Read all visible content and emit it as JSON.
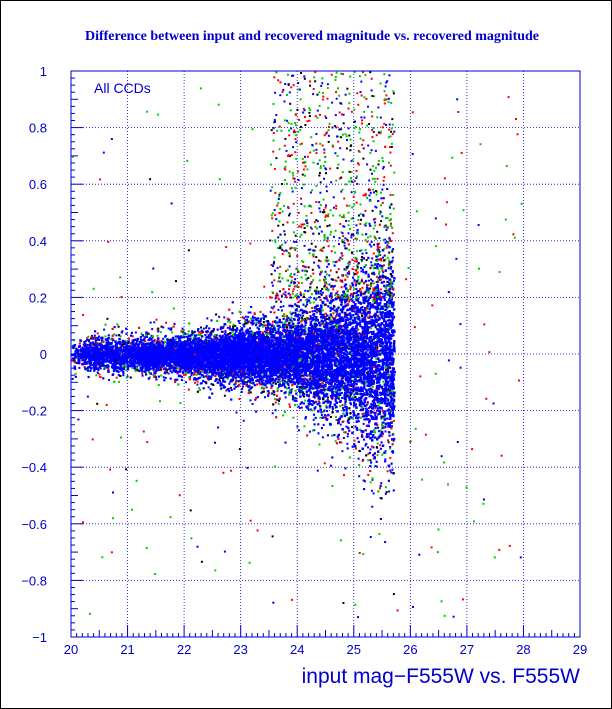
{
  "chart_data": {
    "type": "scatter",
    "title": "Difference between input and recovered magnitude vs. recovered magnitude",
    "xlabel": "input mag−F555W vs. F555W",
    "ylabel": "",
    "annotation": "All CCDs",
    "xlim": [
      20,
      29
    ],
    "ylim": [
      -1,
      1
    ],
    "x_ticks": [
      "20",
      "21",
      "22",
      "23",
      "24",
      "25",
      "26",
      "27",
      "28",
      "29"
    ],
    "y_ticks": [
      "1",
      "0.8",
      "0.6",
      "0.4",
      "0.2",
      "0",
      "−0.2",
      "−0.4",
      "−0.6",
      "−0.8",
      "−1"
    ],
    "grid": true,
    "series_colors": [
      "#000000",
      "#ff0000",
      "#00cc00",
      "#0000ff"
    ],
    "title_color": "#0000cc",
    "axis_color": "#0000cc",
    "point_summary": {
      "x_range": [
        20,
        25.7
      ],
      "center_dy": 0.0,
      "scatter_at": [
        {
          "x": 20.0,
          "half_width": 0.08
        },
        {
          "x": 22.0,
          "half_width": 0.1
        },
        {
          "x": 23.5,
          "half_width": 0.17
        },
        {
          "x": 24.5,
          "half_width": 0.3
        },
        {
          "x": 25.3,
          "half_width": 0.5
        },
        {
          "x": 25.7,
          "half_width": 0.55
        }
      ],
      "cutoff_mag": 25.7,
      "outlier_region": [
        25.7,
        28.0
      ]
    }
  }
}
